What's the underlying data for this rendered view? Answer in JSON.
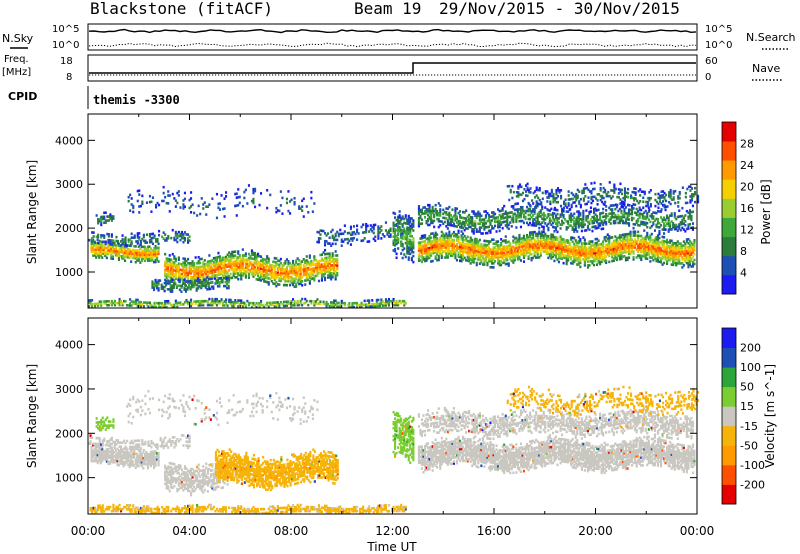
{
  "header": {
    "station": "Blackstone (fitACF)",
    "beam": "Beam 19",
    "dates": "29/Nov/2015 - 30/Nov/2015"
  },
  "panels": {
    "nsky": {
      "label": "N.Sky",
      "ticks_left": [
        "10^5",
        "10^0"
      ],
      "ticks_right": [
        "10^5",
        "10^0"
      ],
      "right_label": "N.Search"
    },
    "freq": {
      "label_line1": "Freq.",
      "label_line2": "[MHz]",
      "ticks_left": [
        "18",
        "8"
      ],
      "ticks_right": [
        "60",
        "0"
      ],
      "right_label": "Nave"
    },
    "cpid": {
      "label": "CPID",
      "text": "themis -3300"
    }
  },
  "x_axis": {
    "title": "Time UT",
    "ticks": [
      "00:00",
      "04:00",
      "08:00",
      "12:00",
      "16:00",
      "20:00",
      "00:00"
    ]
  },
  "colors": {
    "power": [
      "#1c1cf0",
      "#1e4fb4",
      "#2c7c3c",
      "#3ea83a",
      "#9acd32",
      "#f4d000",
      "#ff9b00",
      "#ff4f00",
      "#e40000"
    ],
    "velocity": [
      "#e40000",
      "#ff4f00",
      "#ff9b00",
      "#f6b30a",
      "#c9c7c0",
      "#7ccd32",
      "#2ea53a",
      "#1e4fb4",
      "#1c1cf0"
    ]
  },
  "chart_data": [
    {
      "type": "heatmap",
      "title": "Power",
      "xlabel": "Time UT",
      "ylabel": "Slant Range [km]",
      "y_ticks": [
        "1000",
        "2000",
        "3000",
        "4000"
      ],
      "xlim_hours": [
        0,
        24
      ],
      "ylim_km": [
        180,
        4600
      ],
      "colorbar": {
        "label": "Power [dB]",
        "tick_labels": [
          "4",
          "8",
          "12",
          "16",
          "20",
          "24",
          "28"
        ],
        "range": [
          0,
          32
        ]
      },
      "bands": [
        {
          "start_h": 0.3,
          "end_h": 1.0,
          "center_km": 2150,
          "width_km": 120,
          "peak_db": 10,
          "density": 0.6
        },
        {
          "start_h": 0.1,
          "end_h": 2.8,
          "center_km": 1450,
          "width_km": 170,
          "peak_db": 26,
          "density": 0.95
        },
        {
          "start_h": 0.0,
          "end_h": 4.0,
          "center_km": 1750,
          "width_km": 120,
          "peak_db": 10,
          "density": 0.45
        },
        {
          "start_h": 1.5,
          "end_h": 9.0,
          "center_km": 2550,
          "width_km": 250,
          "peak_db": 7,
          "density": 0.12
        },
        {
          "start_h": 3.0,
          "end_h": 9.8,
          "center_km": 1050,
          "width_km": 260,
          "peak_db": 26,
          "density": 0.85
        },
        {
          "start_h": 2.5,
          "end_h": 5.5,
          "center_km": 700,
          "width_km": 120,
          "peak_db": 12,
          "density": 0.6
        },
        {
          "start_h": 0.0,
          "end_h": 12.5,
          "center_km": 260,
          "width_km": 70,
          "peak_db": 18,
          "density": 0.7
        },
        {
          "start_h": 9.0,
          "end_h": 12.8,
          "center_km": 1850,
          "width_km": 180,
          "peak_db": 8,
          "density": 0.3
        },
        {
          "start_h": 12.0,
          "end_h": 12.8,
          "center_km": 1900,
          "width_km": 420,
          "peak_db": 14,
          "density": 0.6
        },
        {
          "start_h": 13.0,
          "end_h": 23.9,
          "center_km": 1500,
          "width_km": 260,
          "peak_db": 26,
          "density": 0.92
        },
        {
          "start_h": 13.0,
          "end_h": 23.8,
          "center_km": 2200,
          "width_km": 220,
          "peak_db": 12,
          "density": 0.55
        },
        {
          "start_h": 16.5,
          "end_h": 24.0,
          "center_km": 2700,
          "width_km": 200,
          "peak_db": 9,
          "density": 0.35
        }
      ]
    },
    {
      "type": "heatmap",
      "title": "Velocity",
      "xlabel": "Time UT",
      "ylabel": "Slant Range [km]",
      "y_ticks": [
        "1000",
        "2000",
        "3000",
        "4000"
      ],
      "xlim_hours": [
        0,
        24
      ],
      "ylim_km": [
        180,
        4600
      ],
      "colorbar": {
        "label": "Velocity [m s^-1]",
        "tick_labels": [
          "-200",
          "-100",
          "-50",
          "-15",
          "15",
          "50",
          "100",
          "200"
        ],
        "range": [
          -250,
          250
        ]
      },
      "bands": [
        {
          "start_h": 0.3,
          "end_h": 1.0,
          "center_km": 2150,
          "width_km": 120,
          "velocity": 40,
          "density": 0.6
        },
        {
          "start_h": 0.1,
          "end_h": 2.8,
          "center_km": 1450,
          "width_km": 170,
          "velocity": 0,
          "density": 0.95
        },
        {
          "start_h": 0.0,
          "end_h": 4.0,
          "center_km": 1750,
          "width_km": 120,
          "velocity": 0,
          "density": 0.45
        },
        {
          "start_h": 1.5,
          "end_h": 9.0,
          "center_km": 2550,
          "width_km": 250,
          "velocity": 0,
          "density": 0.12
        },
        {
          "start_h": 3.0,
          "end_h": 5.5,
          "center_km": 1000,
          "width_km": 260,
          "velocity": 0,
          "density": 0.7
        },
        {
          "start_h": 5.0,
          "end_h": 9.8,
          "center_km": 1150,
          "width_km": 280,
          "velocity": -40,
          "density": 0.85
        },
        {
          "start_h": 0.0,
          "end_h": 12.5,
          "center_km": 260,
          "width_km": 70,
          "velocity": -30,
          "density": 0.7
        },
        {
          "start_h": 12.0,
          "end_h": 12.8,
          "center_km": 1900,
          "width_km": 420,
          "velocity": 40,
          "density": 0.7
        },
        {
          "start_h": 13.0,
          "end_h": 23.9,
          "center_km": 1500,
          "width_km": 260,
          "velocity": 0,
          "density": 0.92
        },
        {
          "start_h": 13.0,
          "end_h": 23.8,
          "center_km": 2200,
          "width_km": 220,
          "velocity": 0,
          "density": 0.6
        },
        {
          "start_h": 16.5,
          "end_h": 24.0,
          "center_km": 2700,
          "width_km": 200,
          "velocity": -35,
          "density": 0.35
        }
      ]
    }
  ]
}
